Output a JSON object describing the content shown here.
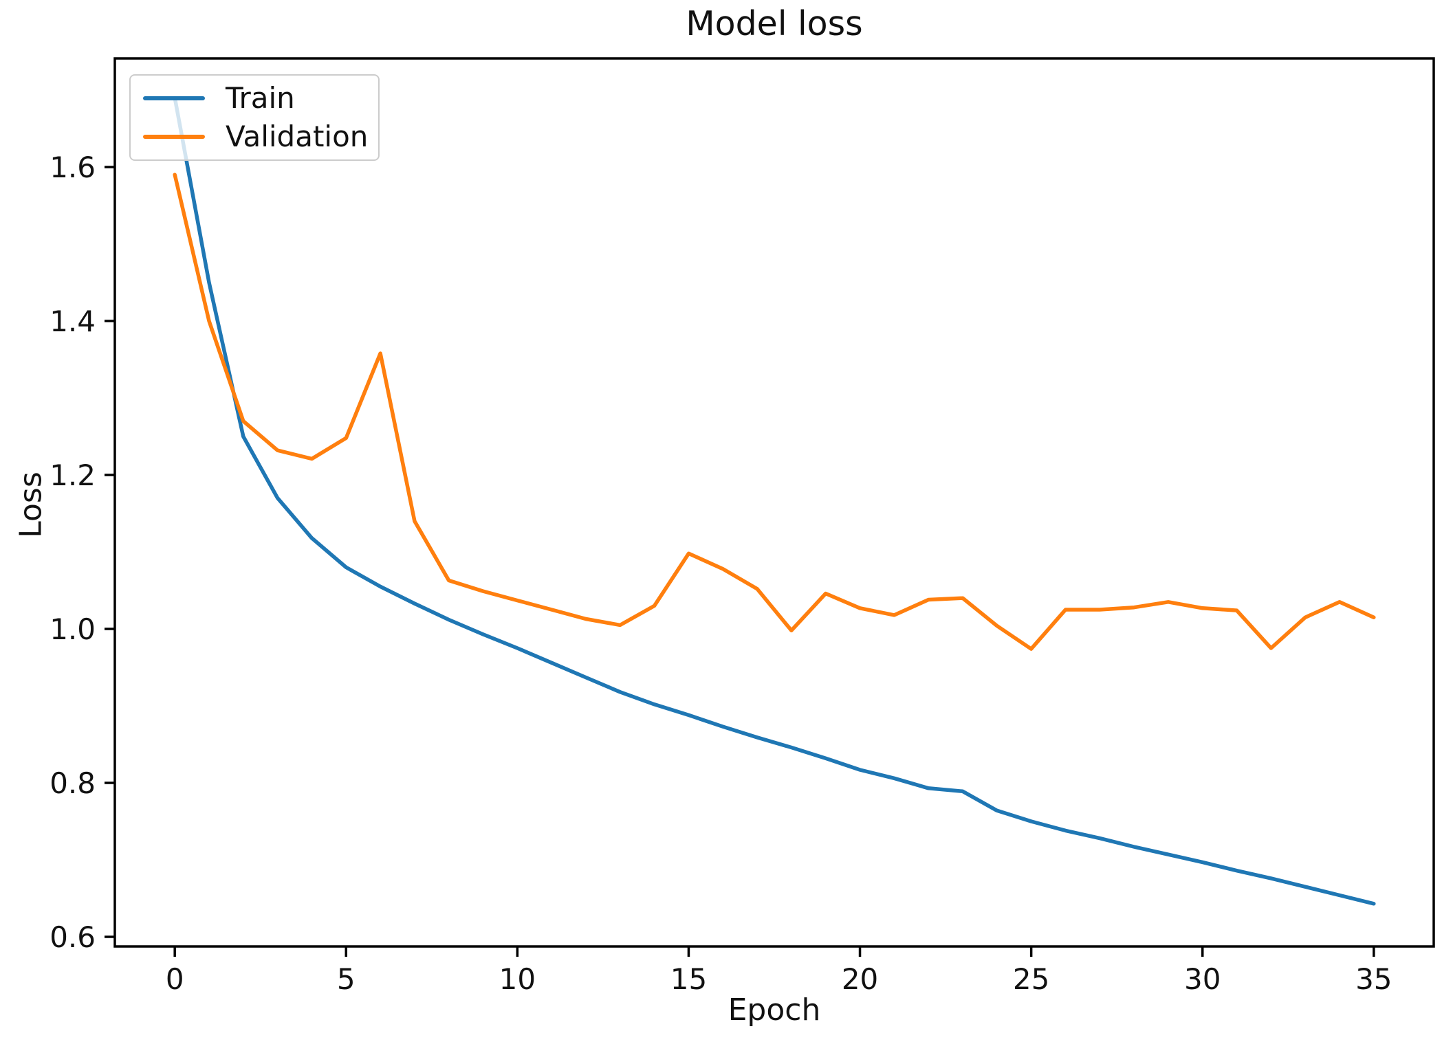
{
  "figure_title": "Model loss",
  "accent_colors": {
    "train": "#1f77b4",
    "validation": "#ff7f0e",
    "spine": "#000000",
    "text": "#111111",
    "legend_border": "#cccccc"
  },
  "chart_data": {
    "type": "line",
    "title": "Model loss",
    "xlabel": "Epoch",
    "ylabel": "Loss",
    "grid": false,
    "legend_position": "upper left",
    "xlim": [
      -1.75,
      36.75
    ],
    "ylim": [
      0.5875,
      1.7411
    ],
    "xticks": [
      0,
      5,
      10,
      15,
      20,
      25,
      30,
      35
    ],
    "xtick_labels": [
      "0",
      "5",
      "10",
      "15",
      "20",
      "25",
      "30",
      "35"
    ],
    "yticks": [
      0.6,
      0.8,
      1.0,
      1.2,
      1.4,
      1.6
    ],
    "ytick_labels": [
      "0.6",
      "0.8",
      "1.0",
      "1.2",
      "1.4",
      "1.6"
    ],
    "x": [
      0,
      1,
      2,
      3,
      4,
      5,
      6,
      7,
      8,
      9,
      10,
      11,
      12,
      13,
      14,
      15,
      16,
      17,
      18,
      19,
      20,
      21,
      22,
      23,
      24,
      25,
      26,
      27,
      28,
      29,
      30,
      31,
      32,
      33,
      34,
      35
    ],
    "series": [
      {
        "name": "Train",
        "color": "#1f77b4",
        "values": [
          1.69,
          1.45,
          1.25,
          1.17,
          1.118,
          1.08,
          1.055,
          1.033,
          1.012,
          0.993,
          0.975,
          0.956,
          0.937,
          0.918,
          0.902,
          0.888,
          0.873,
          0.859,
          0.846,
          0.832,
          0.817,
          0.806,
          0.793,
          0.789,
          0.764,
          0.75,
          0.738,
          0.728,
          0.717,
          0.707,
          0.697,
          0.686,
          0.676,
          0.665,
          0.654,
          0.643
        ]
      },
      {
        "name": "Validation",
        "color": "#ff7f0e",
        "values": [
          1.59,
          1.4,
          1.27,
          1.232,
          1.221,
          1.248,
          1.358,
          1.14,
          1.063,
          1.049,
          1.037,
          1.025,
          1.013,
          1.005,
          1.03,
          1.098,
          1.078,
          1.052,
          0.998,
          1.046,
          1.027,
          1.018,
          1.038,
          1.04,
          1.004,
          0.974,
          1.025,
          1.025,
          1.028,
          1.035,
          1.027,
          1.024,
          0.975,
          1.015,
          1.035,
          1.015
        ]
      }
    ]
  }
}
